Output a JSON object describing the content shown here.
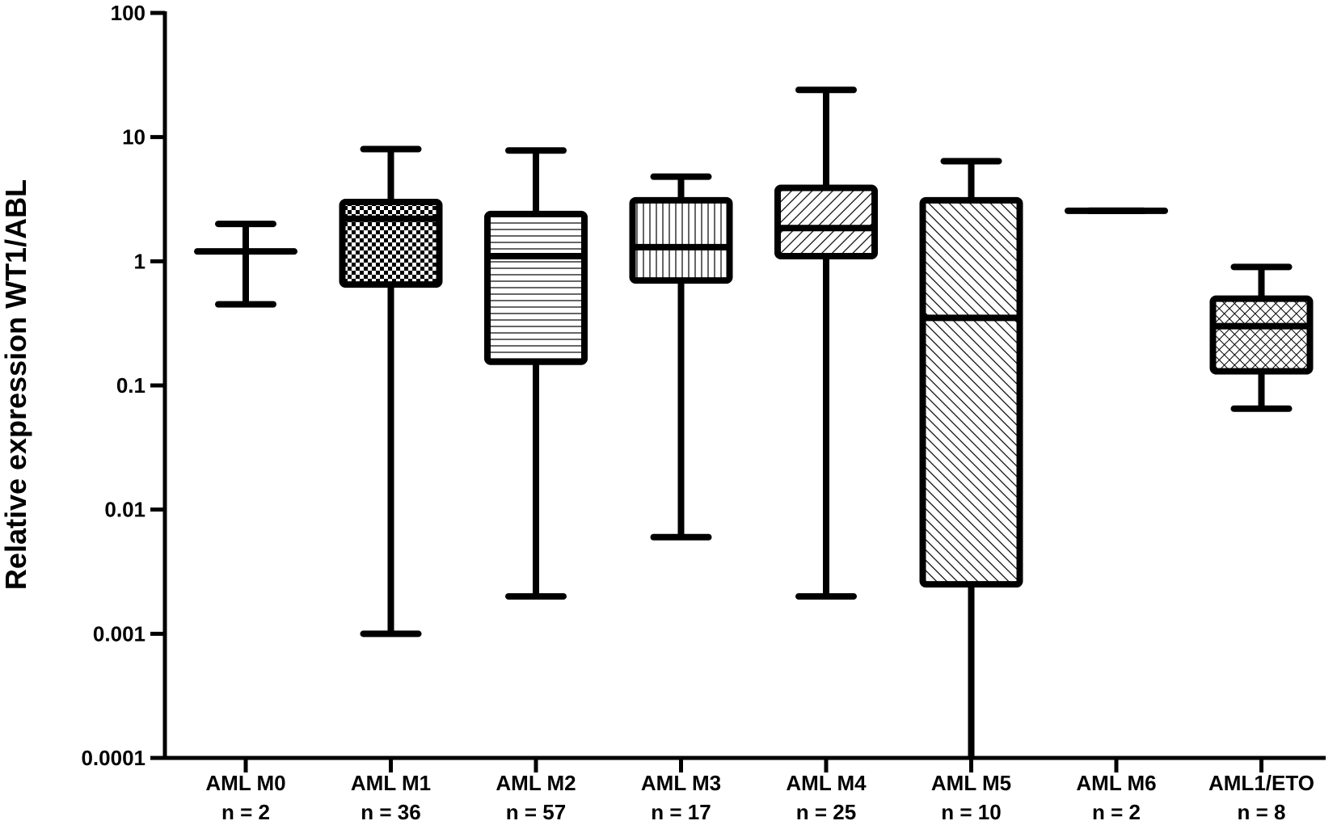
{
  "chart_data": {
    "type": "boxplot",
    "ylabel": "Relative expression WT1/ABL",
    "xlabel": "",
    "yscale": "log",
    "ylim": [
      0.0001,
      100
    ],
    "yticks": [
      "100",
      "10",
      "1",
      "0.1",
      "0.01",
      "0.001",
      "0.0001"
    ],
    "grid": false,
    "legend": "none",
    "categories": [
      {
        "name": "AML M0",
        "n": "n = 2",
        "pattern": "none",
        "min": 0.45,
        "q1": 1.2,
        "median": 1.2,
        "q3": 1.2,
        "max": 2.0
      },
      {
        "name": "AML M1",
        "n": "n = 36",
        "pattern": "checker",
        "min": 0.001,
        "q1": 0.65,
        "median": 2.2,
        "q3": 3.0,
        "max": 8.0
      },
      {
        "name": "AML M2",
        "n": "n = 57",
        "pattern": "horizontal",
        "min": 0.002,
        "q1": 0.155,
        "median": 1.1,
        "q3": 2.4,
        "max": 7.8
      },
      {
        "name": "AML M3",
        "n": "n = 17",
        "pattern": "vertical",
        "min": 0.006,
        "q1": 0.7,
        "median": 1.3,
        "q3": 3.1,
        "max": 4.8
      },
      {
        "name": "AML M4",
        "n": "n = 25",
        "pattern": "diag-up",
        "min": 0.002,
        "q1": 1.1,
        "median": 1.85,
        "q3": 3.9,
        "max": 24
      },
      {
        "name": "AML M5",
        "n": "n = 10",
        "pattern": "diag-down",
        "min": 0.0001,
        "q1": 0.0025,
        "median": 0.35,
        "q3": 3.1,
        "max": 6.4
      },
      {
        "name": "AML M6",
        "n": "n = 2",
        "pattern": "none",
        "min": 2.55,
        "q1": 2.55,
        "median": 2.55,
        "q3": 2.55,
        "max": 2.55
      },
      {
        "name": "AML1/ETO",
        "n": "n = 8",
        "pattern": "crosshatch",
        "min": 0.065,
        "q1": 0.13,
        "median": 0.3,
        "q3": 0.5,
        "max": 0.9
      }
    ]
  }
}
